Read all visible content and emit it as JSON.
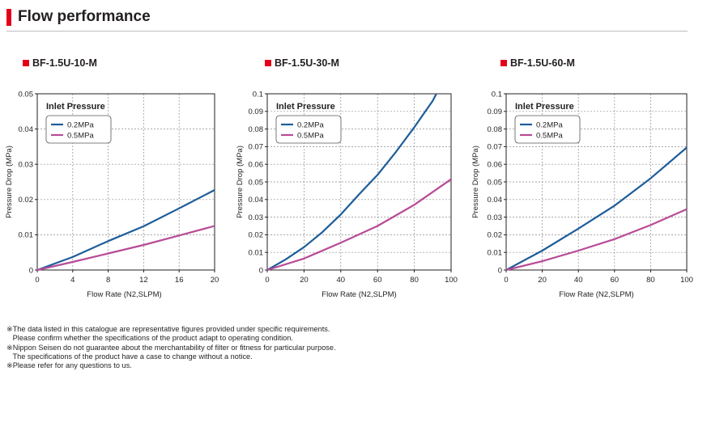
{
  "header": {
    "title": "Flow performance"
  },
  "legend_title": "Inlet Pressure",
  "colors": {
    "accent": "#e3001b",
    "s1": "#1d5d99",
    "s2": "#b84b97",
    "grid": "#8c8c8c"
  },
  "chart_data": [
    {
      "type": "line",
      "title": "BF-1.5U-10-M",
      "xlabel": "Flow Rate (N2,SLPM)",
      "ylabel": "Pressure Drop (MPa)",
      "xlim": [
        0,
        20
      ],
      "ylim": [
        0,
        0.05
      ],
      "xticks": [
        "0",
        "4",
        "8",
        "12",
        "16",
        "20"
      ],
      "yticks": [
        "0",
        "0.01",
        "0.02",
        "0.03",
        "0.04",
        "0.05"
      ],
      "grid": true,
      "legend": "top-left",
      "series": [
        {
          "name": "0.2MPa",
          "x": [
            0,
            4,
            8,
            12,
            16,
            20
          ],
          "y": [
            0,
            0.0037,
            0.0082,
            0.0124,
            0.0175,
            0.0227
          ]
        },
        {
          "name": "0.5MPa",
          "x": [
            0,
            4,
            8,
            12,
            16,
            20
          ],
          "y": [
            0,
            0.0023,
            0.0047,
            0.0071,
            0.0098,
            0.0125
          ]
        }
      ]
    },
    {
      "type": "line",
      "title": "BF-1.5U-30-M",
      "xlabel": "Flow Rate (N2,SLPM)",
      "ylabel": "Pressure Drop (MPa)",
      "xlim": [
        0,
        100
      ],
      "ylim": [
        0,
        0.1
      ],
      "xticks": [
        "0",
        "20",
        "40",
        "60",
        "80",
        "100"
      ],
      "yticks": [
        "0",
        "0.01",
        "0.02",
        "0.03",
        "0.04",
        "0.05",
        "0.06",
        "0.07",
        "0.08",
        "0.09",
        "0.1"
      ],
      "grid": true,
      "legend": "top-left",
      "series": [
        {
          "name": "0.2MPa",
          "x": [
            0,
            10,
            20,
            30,
            40,
            50,
            60,
            70,
            80,
            90,
            92
          ],
          "y": [
            0,
            0.006,
            0.013,
            0.0215,
            0.0315,
            0.043,
            0.054,
            0.067,
            0.081,
            0.096,
            0.1
          ]
        },
        {
          "name": "0.5MPa",
          "x": [
            0,
            20,
            40,
            60,
            80,
            100
          ],
          "y": [
            0,
            0.0065,
            0.0155,
            0.025,
            0.037,
            0.0515
          ]
        }
      ]
    },
    {
      "type": "line",
      "title": "BF-1.5U-60-M",
      "xlabel": "Flow Rate (N2,SLPM)",
      "ylabel": "Pressure Drop (MPa)",
      "xlim": [
        0,
        100
      ],
      "ylim": [
        0,
        0.1
      ],
      "xticks": [
        "0",
        "20",
        "40",
        "60",
        "80",
        "100"
      ],
      "yticks": [
        "0",
        "0.01",
        "0.02",
        "0.03",
        "0.04",
        "0.05",
        "0.06",
        "0.07",
        "0.08",
        "0.09",
        "0.1"
      ],
      "grid": true,
      "legend": "top-left",
      "series": [
        {
          "name": "0.2MPa",
          "x": [
            0,
            20,
            40,
            60,
            80,
            100
          ],
          "y": [
            0,
            0.011,
            0.0235,
            0.0365,
            0.052,
            0.0695
          ]
        },
        {
          "name": "0.5MPa",
          "x": [
            0,
            20,
            40,
            60,
            80,
            100
          ],
          "y": [
            0,
            0.005,
            0.011,
            0.0175,
            0.0255,
            0.0345
          ]
        }
      ]
    }
  ],
  "notes": [
    "※The data listed in this catalogue are representative figures provided under specific requirements.",
    "   Please confirm whether the specifications of the product adapt to operating condition.",
    "※Nippon Seisen do not guarantee about the merchantability of filter or fitness for particular purpose.",
    "   The specifications of the product have a case to change without a notice.",
    "※Please refer for any questions to us."
  ]
}
